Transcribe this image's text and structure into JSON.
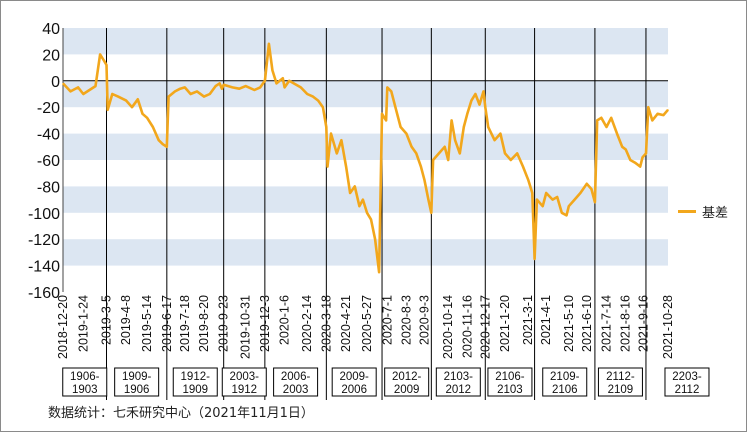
{
  "chart_data": {
    "type": "line",
    "title": "",
    "xlabel": "",
    "ylabel": "",
    "ylim": [
      -160,
      40
    ],
    "y_ticks": [
      "40",
      "20",
      "0",
      "-20",
      "-40",
      "-60",
      "-80",
      "-100",
      "-120",
      "-140",
      "-160"
    ],
    "band_color": "#dce6f2",
    "line_color": "#f2a71c",
    "series": [
      {
        "name": "基差",
        "points": [
          [
            "2018-12-20",
            -2
          ],
          [
            "2019-1-2",
            -8
          ],
          [
            "2019-1-15",
            -5
          ],
          [
            "2019-1-24",
            -10
          ],
          [
            "2019-2-14",
            -4
          ],
          [
            "2019-2-22",
            20
          ],
          [
            "2019-3-1",
            15
          ],
          [
            "2019-3-5",
            12
          ],
          [
            "2019-3-7",
            -22
          ],
          [
            "2019-3-15",
            -10
          ],
          [
            "2019-3-25",
            -12
          ],
          [
            "2019-4-8",
            -15
          ],
          [
            "2019-4-18",
            -20
          ],
          [
            "2019-4-28",
            -14
          ],
          [
            "2019-5-6",
            -25
          ],
          [
            "2019-5-14",
            -28
          ],
          [
            "2019-5-24",
            -35
          ],
          [
            "2019-6-3",
            -45
          ],
          [
            "2019-6-10",
            -48
          ],
          [
            "2019-6-17",
            -50
          ],
          [
            "2019-6-20",
            -12
          ],
          [
            "2019-7-1",
            -8
          ],
          [
            "2019-7-10",
            -6
          ],
          [
            "2019-7-18",
            -5
          ],
          [
            "2019-7-28",
            -10
          ],
          [
            "2019-8-8",
            -8
          ],
          [
            "2019-8-20",
            -12
          ],
          [
            "2019-8-30",
            -10
          ],
          [
            "2019-9-9",
            -4
          ],
          [
            "2019-9-16",
            -2
          ],
          [
            "2019-9-20",
            -6
          ],
          [
            "2019-9-23",
            -3
          ],
          [
            "2019-10-8",
            -5
          ],
          [
            "2019-10-20",
            -6
          ],
          [
            "2019-10-31",
            -4
          ],
          [
            "2019-11-15",
            -7
          ],
          [
            "2019-11-25",
            -5
          ],
          [
            "2019-12-3",
            0
          ],
          [
            "2019-12-10",
            28
          ],
          [
            "2019-12-16",
            8
          ],
          [
            "2019-12-23",
            -2
          ],
          [
            "2020-1-3",
            2
          ],
          [
            "2020-1-6",
            -5
          ],
          [
            "2020-1-14",
            0
          ],
          [
            "2020-2-3",
            -5
          ],
          [
            "2020-2-14",
            -10
          ],
          [
            "2020-2-24",
            -12
          ],
          [
            "2020-3-4",
            -15
          ],
          [
            "2020-3-12",
            -20
          ],
          [
            "2020-3-18",
            -35
          ],
          [
            "2020-3-20",
            -65
          ],
          [
            "2020-3-26",
            -40
          ],
          [
            "2020-4-5",
            -55
          ],
          [
            "2020-4-13",
            -45
          ],
          [
            "2020-4-21",
            -65
          ],
          [
            "2020-4-28",
            -85
          ],
          [
            "2020-5-6",
            -80
          ],
          [
            "2020-5-14",
            -95
          ],
          [
            "2020-5-20",
            -90
          ],
          [
            "2020-5-27",
            -100
          ],
          [
            "2020-6-3",
            -105
          ],
          [
            "2020-6-10",
            -120
          ],
          [
            "2020-6-17",
            -145
          ],
          [
            "2020-6-22",
            -25
          ],
          [
            "2020-6-29",
            -30
          ],
          [
            "2020-7-1",
            -5
          ],
          [
            "2020-7-8",
            -8
          ],
          [
            "2020-7-15",
            -20
          ],
          [
            "2020-7-24",
            -35
          ],
          [
            "2020-8-3",
            -40
          ],
          [
            "2020-8-12",
            -50
          ],
          [
            "2020-8-20",
            -55
          ],
          [
            "2020-8-28",
            -65
          ],
          [
            "2020-9-3",
            -75
          ],
          [
            "2020-9-10",
            -90
          ],
          [
            "2020-9-15",
            -100
          ],
          [
            "2020-9-18",
            -60
          ],
          [
            "2020-9-28",
            -55
          ],
          [
            "2020-10-8",
            -50
          ],
          [
            "2020-10-14",
            -60
          ],
          [
            "2020-10-20",
            -30
          ],
          [
            "2020-10-26",
            -45
          ],
          [
            "2020-11-3",
            -55
          ],
          [
            "2020-11-10",
            -35
          ],
          [
            "2020-11-16",
            -25
          ],
          [
            "2020-11-23",
            -15
          ],
          [
            "2020-11-30",
            -10
          ],
          [
            "2020-12-7",
            -18
          ],
          [
            "2020-12-14",
            -8
          ],
          [
            "2020-12-17",
            -20
          ],
          [
            "2020-12-22",
            -35
          ],
          [
            "2021-1-2",
            -45
          ],
          [
            "2021-1-12",
            -40
          ],
          [
            "2021-1-20",
            -55
          ],
          [
            "2021-1-30",
            -60
          ],
          [
            "2021-2-10",
            -55
          ],
          [
            "2021-2-20",
            -65
          ],
          [
            "2021-3-1",
            -75
          ],
          [
            "2021-3-8",
            -85
          ],
          [
            "2021-3-12",
            -135
          ],
          [
            "2021-3-16",
            -90
          ],
          [
            "2021-3-26",
            -95
          ],
          [
            "2021-4-1",
            -85
          ],
          [
            "2021-4-12",
            -90
          ],
          [
            "2021-4-20",
            -88
          ],
          [
            "2021-4-28",
            -100
          ],
          [
            "2021-5-6",
            -102
          ],
          [
            "2021-5-10",
            -95
          ],
          [
            "2021-5-20",
            -90
          ],
          [
            "2021-5-30",
            -85
          ],
          [
            "2021-6-10",
            -78
          ],
          [
            "2021-6-18",
            -82
          ],
          [
            "2021-6-24",
            -92
          ],
          [
            "2021-6-28",
            -30
          ],
          [
            "2021-7-5",
            -28
          ],
          [
            "2021-7-14",
            -35
          ],
          [
            "2021-7-22",
            -28
          ],
          [
            "2021-8-1",
            -40
          ],
          [
            "2021-8-10",
            -50
          ],
          [
            "2021-8-16",
            -52
          ],
          [
            "2021-8-24",
            -60
          ],
          [
            "2021-9-1",
            -62
          ],
          [
            "2021-9-10",
            -65
          ],
          [
            "2021-9-14",
            -58
          ],
          [
            "2021-9-20",
            -55
          ],
          [
            "2021-9-24",
            -20
          ],
          [
            "2021-10-1",
            -30
          ],
          [
            "2021-10-10",
            -25
          ],
          [
            "2021-10-20",
            -26
          ],
          [
            "2021-10-28",
            -22
          ]
        ]
      }
    ],
    "x_tick_labels": [
      "2018-12-20",
      "2019-1-24",
      "2019-3-5",
      "2019-4-8",
      "2019-5-14",
      "2019-6-17",
      "2019-7-18",
      "2019-8-20",
      "2019-9-23",
      "2019-10-31",
      "2019-12-3",
      "2020-1-6",
      "2020-2-14",
      "2020-3-18",
      "2020-4-21",
      "2020-5-27",
      "2020-7-1",
      "2020-8-3",
      "2020-9-3",
      "2020-10-14",
      "2020-11-16",
      "2020-12-17",
      "2021-1-20",
      "2021-3-1",
      "2021-4-1",
      "2021-5-10",
      "2021-6-10",
      "2021-7-14",
      "2021-8-16",
      "2021-9-16",
      "2021-10-28"
    ],
    "contract_dividers": [
      "2019-3-5",
      "2019-6-17",
      "2019-9-23",
      "2019-12-3",
      "2020-3-18",
      "2020-6-22",
      "2020-9-15",
      "2020-12-17",
      "2021-3-12",
      "2021-6-24",
      "2021-9-20"
    ],
    "contract_labels": [
      {
        "line1": "1906-",
        "line2": "1903"
      },
      {
        "line1": "1909-",
        "line2": "1906"
      },
      {
        "line1": "1912-",
        "line2": "1909"
      },
      {
        "line1": "2003-",
        "line2": "1912"
      },
      {
        "line1": "2006-",
        "line2": "2003"
      },
      {
        "line1": "2009-",
        "line2": "2006"
      },
      {
        "line1": "2012-",
        "line2": "2009"
      },
      {
        "line1": "2103-",
        "line2": "2012"
      },
      {
        "line1": "2106-",
        "line2": "2103"
      },
      {
        "line1": "2109-",
        "line2": "2106"
      },
      {
        "line1": "2112-",
        "line2": "2109"
      },
      {
        "line1": "2203-",
        "line2": "2112"
      }
    ]
  },
  "legend": {
    "label": "基差"
  },
  "source_note": "数据统计：七禾研究中心（2021年11月1日）"
}
